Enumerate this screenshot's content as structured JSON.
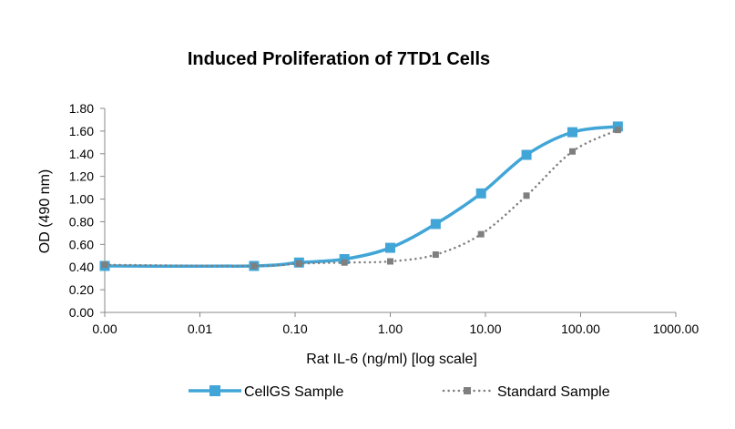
{
  "chart_data": {
    "type": "line",
    "title": "Induced Proliferation of 7TD1 Cells",
    "xlabel": "Rat IL-6 (ng/ml) [log scale]",
    "ylabel": "OD (490 nm)",
    "x_scale": "log",
    "xlim": [
      0.001,
      1000
    ],
    "ylim": [
      0,
      1.8
    ],
    "x_tick_values": [
      0.001,
      0.01,
      0.1,
      1,
      10,
      100,
      1000
    ],
    "x_tick_labels": [
      "0.00",
      "0.01",
      "0.10",
      "1.00",
      "10.00",
      "100.00",
      "1000.00"
    ],
    "y_tick_values": [
      0,
      0.2,
      0.4,
      0.6,
      0.8,
      1.0,
      1.2,
      1.4,
      1.6,
      1.8
    ],
    "y_tick_labels": [
      "0.00",
      "0.20",
      "0.40",
      "0.60",
      "0.80",
      "1.00",
      "1.20",
      "1.40",
      "1.60",
      "1.80"
    ],
    "grid": false,
    "legend_position": "bottom",
    "series": [
      {
        "name": "CellGS Sample",
        "color": "#41a6d7",
        "line_style": "solid",
        "marker": "square",
        "x": [
          0.001,
          0.037,
          0.11,
          0.33,
          1.0,
          3.0,
          9.0,
          27.0,
          82.0,
          246.0
        ],
        "y": [
          0.41,
          0.41,
          0.44,
          0.47,
          0.57,
          0.78,
          1.05,
          1.39,
          1.59,
          1.64
        ]
      },
      {
        "name": "Standard Sample",
        "color": "#7f7f7f",
        "line_style": "dotted",
        "marker": "square",
        "x": [
          0.001,
          0.037,
          0.11,
          0.33,
          1.0,
          3.0,
          9.0,
          27.0,
          82.0,
          246.0
        ],
        "y": [
          0.42,
          0.41,
          0.43,
          0.44,
          0.45,
          0.51,
          0.69,
          1.03,
          1.42,
          1.61
        ]
      }
    ]
  }
}
